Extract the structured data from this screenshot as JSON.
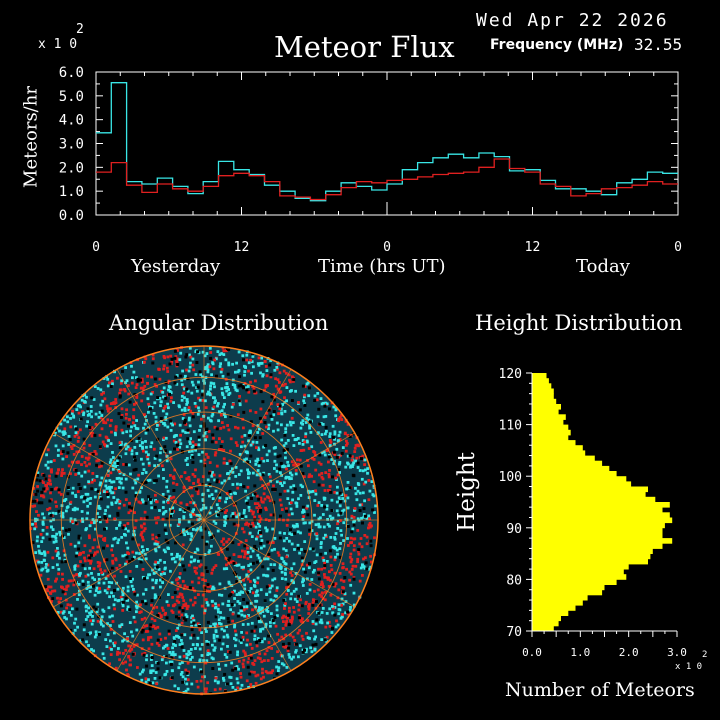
{
  "header": {
    "date": "Wed Apr 22 2026",
    "title": "Meteor Flux",
    "frequency_label": "Frequency (MHz)",
    "frequency_value": "32.55"
  },
  "colors": {
    "background": "#000000",
    "axes": "#ffffff",
    "series_today": "#39e6e6",
    "series_yesterday": "#e02020",
    "histogram": "#ffff00",
    "polar_grid": "#ff7f1e"
  },
  "flux_chart": {
    "multiplier_base": "x 1 0",
    "multiplier_exp": "2",
    "ylabel": "Meteors/hr",
    "xlabel": "Time (hrs UT)",
    "left_label": "Yesterday",
    "right_label": "Today"
  },
  "angular": {
    "title": "Angular Distribution"
  },
  "height_chart": {
    "title": "Height Distribution",
    "ylabel": "Height",
    "xlabel": "Number of Meteors",
    "multiplier_base": "x 1 0",
    "multiplier_exp": "2"
  },
  "chart_data": [
    {
      "type": "line",
      "title": "Meteor Flux",
      "xlabel": "Time (hrs UT)",
      "ylabel": "Meteors/hr",
      "y_multiplier": 100,
      "x_tick_labels": [
        "0",
        "12",
        "0",
        "12",
        "0"
      ],
      "x_ticks_hours": [
        0,
        12,
        24,
        36,
        48
      ],
      "xlim": [
        0,
        48
      ],
      "ylim": [
        0,
        6
      ],
      "y_tick_labels": [
        "0.0",
        "1.0",
        "2.0",
        "3.0",
        "4.0",
        "5.0",
        "6.0"
      ],
      "step": true,
      "series": [
        {
          "color": "#39e6e6",
          "values": [
            3.45,
            5.55,
            1.4,
            1.3,
            1.55,
            1.2,
            0.9,
            1.4,
            2.25,
            1.9,
            1.7,
            1.25,
            1.0,
            0.7,
            0.6,
            1.0,
            1.35,
            1.2,
            1.05,
            1.3,
            1.9,
            2.2,
            2.4,
            2.55,
            2.4,
            2.6,
            2.45,
            1.85,
            1.9,
            1.45,
            1.1,
            1.1,
            1.0,
            0.85,
            1.35,
            1.5,
            1.8,
            1.75
          ]
        },
        {
          "color": "#e02020",
          "values": [
            1.8,
            2.2,
            1.25,
            0.95,
            1.3,
            1.1,
            1.0,
            1.2,
            1.65,
            1.75,
            1.65,
            1.4,
            0.8,
            0.75,
            0.65,
            0.85,
            1.15,
            1.4,
            1.35,
            1.45,
            1.5,
            1.6,
            1.7,
            1.75,
            1.8,
            2.0,
            2.35,
            1.95,
            1.8,
            1.3,
            1.2,
            0.8,
            0.9,
            1.1,
            1.15,
            1.25,
            1.4,
            1.3
          ]
        }
      ]
    },
    {
      "type": "scatter",
      "title": "Angular Distribution",
      "note": "polar sky plot of meteor arrival directions"
    },
    {
      "type": "bar",
      "orientation": "horizontal",
      "title": "Height Distribution",
      "xlabel": "Number of Meteors",
      "ylabel": "Height",
      "x_multiplier": 100,
      "xlim": [
        0,
        3.0
      ],
      "ylim": [
        70,
        120
      ],
      "x_tick_labels": [
        "0.0",
        "1.0",
        "2.0",
        "3.0"
      ],
      "y_tick_labels": [
        "70",
        "80",
        "90",
        "100",
        "110",
        "120"
      ],
      "bin_width_km": 1,
      "heights": [
        70,
        71,
        72,
        73,
        74,
        75,
        76,
        77,
        78,
        79,
        80,
        81,
        82,
        83,
        84,
        85,
        86,
        87,
        88,
        89,
        90,
        91,
        92,
        93,
        94,
        95,
        96,
        97,
        98,
        99,
        100,
        101,
        102,
        103,
        104,
        105,
        106,
        107,
        108,
        109,
        110,
        111,
        112,
        113,
        114,
        115,
        116,
        117,
        118,
        119
      ],
      "values": [
        0.45,
        0.55,
        0.6,
        0.75,
        0.9,
        1.05,
        1.15,
        1.45,
        1.5,
        1.75,
        1.95,
        1.9,
        2.0,
        2.4,
        2.45,
        2.5,
        2.7,
        2.9,
        2.7,
        2.7,
        2.75,
        2.9,
        2.85,
        2.7,
        2.85,
        2.55,
        2.35,
        2.4,
        2.05,
        1.95,
        1.75,
        1.6,
        1.45,
        1.3,
        1.1,
        1.05,
        0.9,
        0.75,
        0.8,
        0.75,
        0.65,
        0.7,
        0.55,
        0.6,
        0.5,
        0.45,
        0.45,
        0.4,
        0.35,
        0.3
      ]
    }
  ]
}
